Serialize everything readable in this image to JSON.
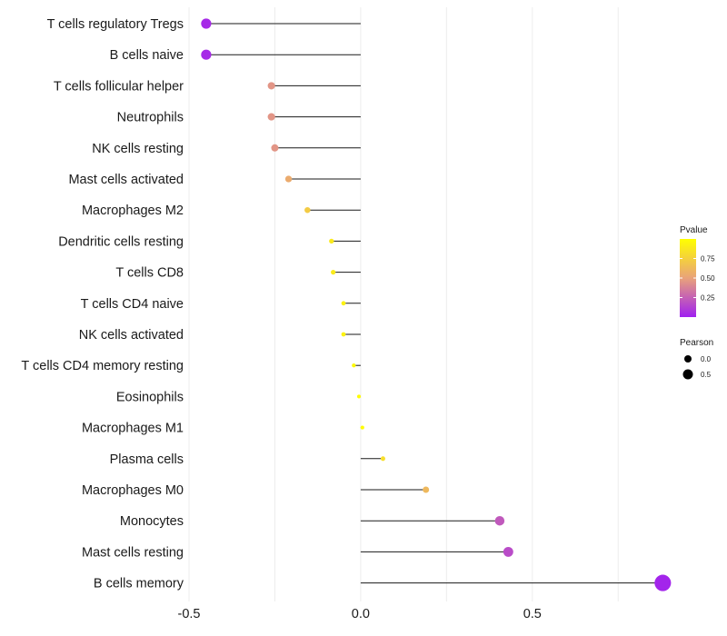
{
  "chart_data": {
    "type": "lollipop",
    "title": "",
    "xlabel": "",
    "ylabel": "",
    "xlim": [
      -0.5,
      0.85
    ],
    "x_ticks": [
      -0.5,
      0.0,
      0.5
    ],
    "x_tick_labels": [
      "-0.5",
      "0.0",
      "0.5"
    ],
    "grid": true,
    "legend_position": "right",
    "categories": [
      "T cells regulatory  Tregs",
      "B cells naive",
      "T cells follicular helper",
      "Neutrophils",
      "NK cells resting",
      "Mast cells activated",
      "Macrophages M2",
      "Dendritic cells resting",
      "T cells CD8",
      "T cells CD4 naive",
      "NK cells activated",
      "T cells CD4 memory resting",
      "Eosinophils",
      "Macrophages M1",
      "Plasma cells",
      "Macrophages M0",
      "Monocytes",
      "Mast cells resting",
      "B cells memory"
    ],
    "pearson": [
      -0.45,
      -0.45,
      -0.26,
      -0.26,
      -0.25,
      -0.21,
      -0.155,
      -0.085,
      -0.08,
      -0.05,
      -0.05,
      -0.02,
      -0.005,
      0.005,
      0.065,
      0.19,
      0.405,
      0.43,
      0.88
    ],
    "pvalue": [
      0.04,
      0.04,
      0.45,
      0.45,
      0.45,
      0.55,
      0.72,
      0.88,
      0.89,
      0.93,
      0.93,
      0.97,
      0.99,
      0.99,
      0.82,
      0.62,
      0.22,
      0.17,
      0.02
    ],
    "color_legend": {
      "title": "Pvalue",
      "ticks": [
        0.25,
        0.5,
        0.75
      ],
      "tick_labels": [
        "0.25",
        "0.50",
        "0.75"
      ],
      "low_color": "#a020f0",
      "mid_color": "#e9a27a",
      "high_color": "#ffff00"
    },
    "size_legend": {
      "title": "Pearson",
      "values": [
        0.0,
        0.5
      ],
      "labels": [
        "0.0",
        "0.5"
      ]
    }
  }
}
